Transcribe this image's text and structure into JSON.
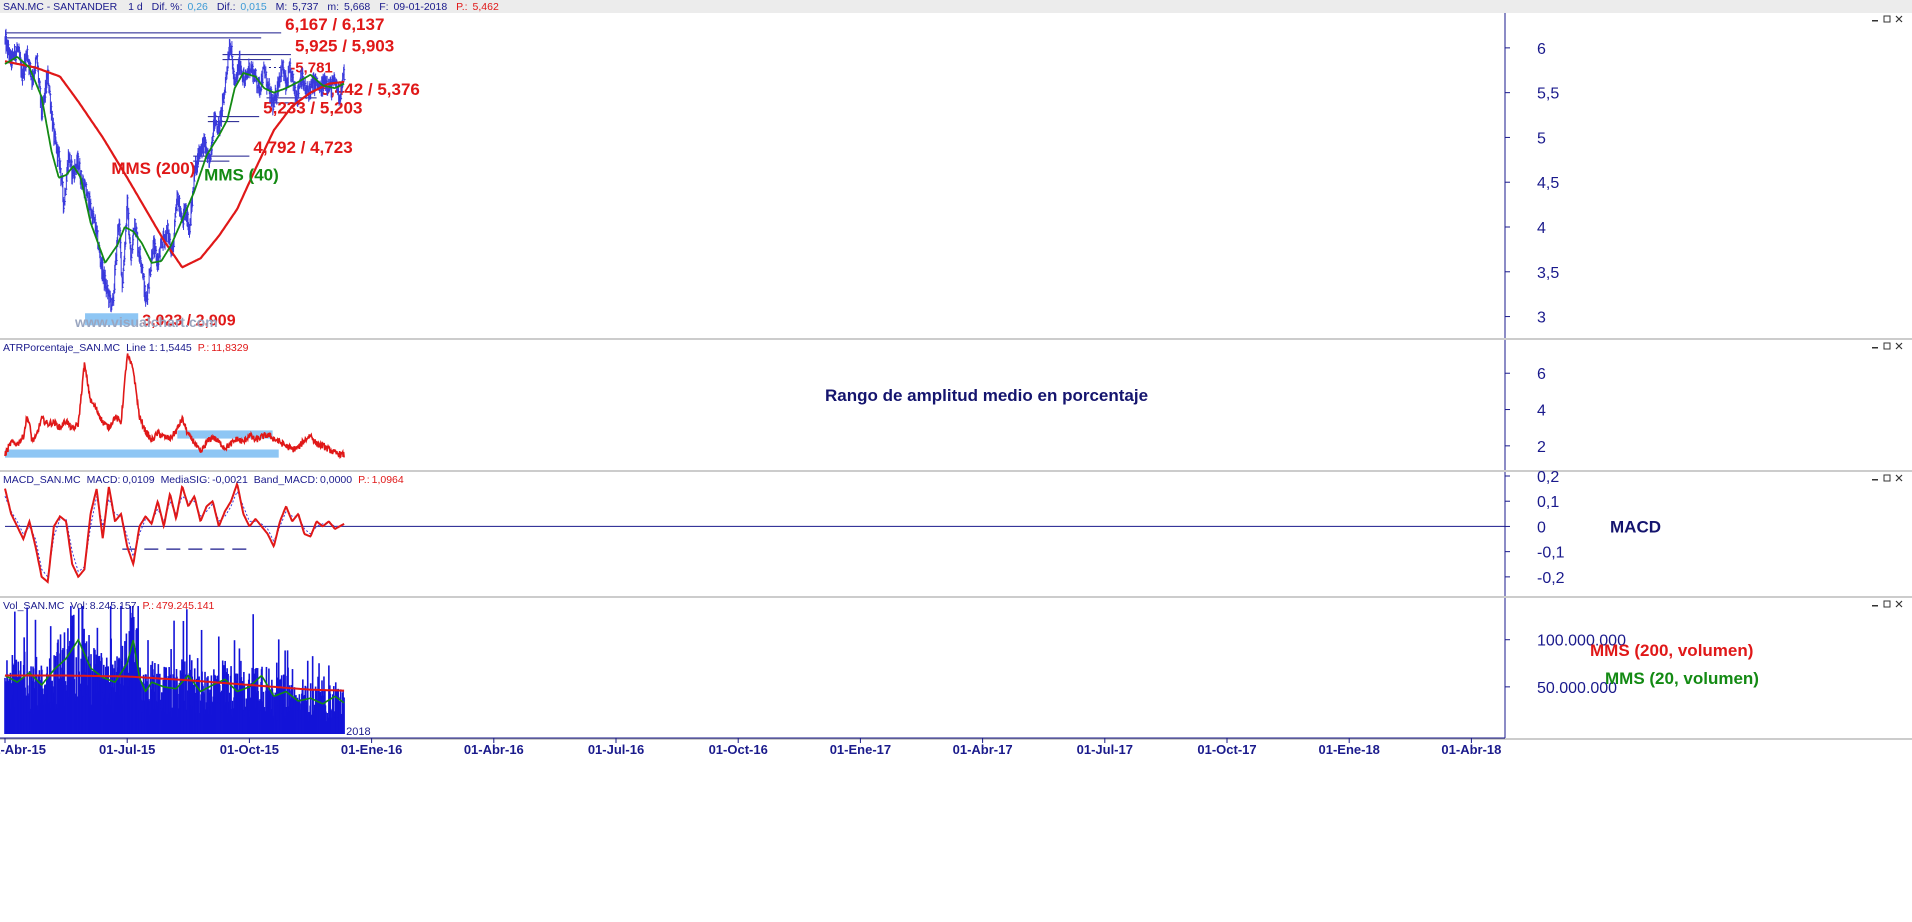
{
  "header": {
    "symbol": "SAN.MC - SANTANDER",
    "period": "1 d",
    "dif_pct_label": "Dif. %:",
    "dif_pct_value": "0,26",
    "dif_label": "Dif.:",
    "dif_value": "0,015",
    "max_label": "M:",
    "max_value": "5,737",
    "min_label": "m:",
    "min_value": "5,668",
    "date_label": "F:",
    "date_value": "09-01-2018",
    "price_label": "P.:",
    "price_value": "5,462"
  },
  "watermark": "www.visualchart.com",
  "colors": {
    "price": "#3a3adc",
    "mms200": "#e01818",
    "mms40": "#138a13",
    "level": "#1a1a8c",
    "band": "#8ec6f4",
    "annotation_red": "#e01818",
    "annotation_navy": "#14146e",
    "volume": "#1414d8"
  },
  "chart_data": [
    {
      "type": "line",
      "name": "price-panel",
      "x_axis": {
        "labels": [
          "01-Abr-15",
          "01-Jul-15",
          "01-Oct-15",
          "01-Ene-16",
          "01-Abr-16",
          "01-Jul-16",
          "01-Oct-16",
          "01-Ene-17",
          "01-Abr-17",
          "01-Jul-17",
          "01-Oct-17",
          "01-Ene-18",
          "01-Abr-18"
        ],
        "year_marker": "2018"
      },
      "ylim": [
        2.85,
        6.3
      ],
      "y_ticks": [
        3,
        3.5,
        4,
        4.5,
        5,
        5.5,
        6
      ],
      "y_tick_labels": [
        "3",
        "3,5",
        "4",
        "4,5",
        "5",
        "5,5",
        "6"
      ],
      "price": {
        "t": [
          0,
          0.05,
          0.1,
          0.14,
          0.18,
          0.22,
          0.26,
          0.3,
          0.35,
          0.4,
          0.45,
          0.48,
          0.52,
          0.55,
          0.6,
          0.62,
          0.66,
          0.7,
          0.74,
          0.79,
          0.83,
          0.88,
          0.93,
          0.96,
          1.0,
          1.03,
          1.06,
          1.09,
          1.12,
          1.15,
          1.18,
          1.21,
          1.25,
          1.29,
          1.33,
          1.37,
          1.41,
          1.45,
          1.48,
          1.51,
          1.55,
          1.59,
          1.63,
          1.67,
          1.71,
          1.75,
          1.79,
          1.84,
          1.88,
          1.92,
          1.96,
          2.0,
          2.04,
          2.08,
          2.12,
          2.16,
          2.2,
          2.24,
          2.27,
          2.3,
          2.33,
          2.36,
          2.39,
          2.42,
          2.46,
          2.5,
          2.54,
          2.58,
          2.62,
          2.66,
          2.7,
          2.74,
          2.775
        ],
        "values": [
          6.08,
          5.85,
          6.0,
          5.7,
          5.95,
          5.65,
          5.88,
          5.25,
          5.7,
          5.0,
          4.7,
          4.25,
          4.8,
          4.6,
          4.72,
          4.55,
          4.4,
          4.2,
          4.0,
          3.55,
          3.3,
          3.1,
          4.1,
          3.35,
          4.25,
          3.6,
          4.1,
          3.75,
          3.6,
          3.15,
          3.45,
          3.8,
          3.6,
          3.85,
          3.95,
          3.7,
          4.35,
          4.05,
          4.2,
          3.95,
          4.6,
          4.85,
          4.95,
          4.7,
          5.2,
          5.1,
          5.45,
          6.1,
          5.55,
          5.85,
          5.6,
          5.8,
          5.7,
          5.55,
          5.75,
          5.5,
          5.35,
          5.65,
          5.8,
          5.55,
          5.75,
          5.6,
          5.45,
          5.7,
          5.5,
          5.55,
          5.62,
          5.52,
          5.65,
          5.55,
          5.62,
          5.46,
          5.72
        ]
      },
      "mms200": {
        "t": [
          0,
          0.25,
          0.45,
          0.6,
          0.8,
          1.0,
          1.15,
          1.3,
          1.45,
          1.6,
          1.75,
          1.9,
          2.05,
          2.2,
          2.35,
          2.5,
          2.65,
          2.775
        ],
        "values": [
          5.85,
          5.78,
          5.68,
          5.4,
          5.0,
          4.55,
          4.2,
          3.85,
          3.55,
          3.65,
          3.9,
          4.2,
          4.65,
          5.08,
          5.35,
          5.5,
          5.6,
          5.62
        ]
      },
      "mms40": {
        "t": [
          0,
          0.1,
          0.2,
          0.3,
          0.38,
          0.44,
          0.5,
          0.56,
          0.62,
          0.7,
          0.82,
          0.92,
          0.98,
          1.05,
          1.12,
          1.2,
          1.28,
          1.36,
          1.45,
          1.55,
          1.65,
          1.75,
          1.82,
          1.88,
          1.95,
          2.05,
          2.12,
          2.2,
          2.3,
          2.4,
          2.5,
          2.6,
          2.7,
          2.775
        ],
        "values": [
          5.82,
          5.9,
          5.78,
          5.45,
          4.85,
          4.55,
          4.58,
          4.68,
          4.55,
          4.05,
          3.6,
          3.8,
          4.0,
          3.95,
          3.82,
          3.6,
          3.62,
          3.8,
          4.08,
          4.4,
          4.8,
          5.02,
          5.2,
          5.55,
          5.72,
          5.68,
          5.55,
          5.5,
          5.55,
          5.62,
          5.7,
          5.58,
          5.55,
          5.6
        ]
      },
      "levels": [
        {
          "label": "6,167 / 6,137",
          "y": 6.167,
          "t0": 0.0,
          "t1": 2.26
        },
        {
          "label": "5,925 / 5,903",
          "y": 5.925,
          "t0": 1.78,
          "t1": 2.34
        },
        {
          "label": "5,781",
          "y": 5.781,
          "t0": 2.16,
          "t1": 2.285,
          "dotted": true
        },
        {
          "label": "5,442 / 5,376",
          "y": 5.442,
          "t0": 2.14,
          "t1": 2.55
        },
        {
          "label": "5,233 / 5,203",
          "y": 5.233,
          "t0": 1.66,
          "t1": 2.08
        },
        {
          "label": "4,792 / 4,723",
          "y": 4.792,
          "t0": 1.54,
          "t1": 2.0
        },
        {
          "label": "3,023 / 2,909",
          "y": 2.97,
          "t0": 0.655,
          "t1": 1.09,
          "band": true
        }
      ],
      "annotations": {
        "mms200_label": "MMS (200)",
        "mms40_label": "MMS (40)"
      }
    },
    {
      "type": "line",
      "name": "atr-panel",
      "header": {
        "title": "ATRPorcentaje_SAN.MC",
        "line_label": "Line 1:",
        "line_value": "1,5445",
        "p_label": "P.:",
        "p_value": "11,8329"
      },
      "ylim": [
        1.0,
        7.5
      ],
      "y_ticks": [
        2,
        4,
        6
      ],
      "y_tick_labels": [
        "2",
        "4",
        "6"
      ],
      "t": [
        0,
        0.05,
        0.1,
        0.15,
        0.18,
        0.2,
        0.22,
        0.25,
        0.3,
        0.35,
        0.4,
        0.45,
        0.5,
        0.55,
        0.6,
        0.65,
        0.7,
        0.75,
        0.8,
        0.85,
        0.9,
        0.95,
        1.0,
        1.05,
        1.1,
        1.15,
        1.2,
        1.25,
        1.3,
        1.35,
        1.4,
        1.45,
        1.5,
        1.55,
        1.6,
        1.65,
        1.7,
        1.75,
        1.8,
        1.85,
        1.9,
        1.95,
        2.0,
        2.05,
        2.1,
        2.15,
        2.2,
        2.25,
        2.3,
        2.35,
        2.4,
        2.45,
        2.5,
        2.55,
        2.6,
        2.65,
        2.7,
        2.775
      ],
      "values": [
        1.5,
        2.2,
        2.1,
        2.5,
        3.6,
        3.2,
        2.3,
        2.4,
        3.5,
        3.2,
        3.3,
        3.0,
        3.4,
        2.9,
        3.2,
        6.5,
        4.5,
        4.0,
        3.3,
        3.0,
        3.6,
        3.3,
        7.0,
        6.2,
        3.6,
        2.8,
        2.3,
        2.7,
        2.5,
        2.4,
        2.8,
        3.5,
        2.6,
        2.2,
        1.6,
        2.2,
        2.5,
        2.2,
        1.9,
        2.1,
        2.4,
        2.2,
        2.6,
        2.3,
        2.5,
        2.6,
        2.4,
        2.2,
        2.0,
        1.8,
        1.9,
        2.3,
        2.6,
        2.1,
        2.0,
        1.8,
        1.6,
        1.5
      ],
      "bands": [
        {
          "y0": 1.35,
          "y1": 1.8,
          "t0": 0.0,
          "t1": 2.24
        },
        {
          "y0": 2.4,
          "y1": 2.85,
          "t0": 1.41,
          "t1": 2.19
        }
      ],
      "annotation": "Rango de amplitud medio en porcentaje"
    },
    {
      "type": "line",
      "name": "macd-panel",
      "header": {
        "title": "MACD_SAN.MC",
        "macd_label": "MACD:",
        "macd_value": "0,0109",
        "sig_label": "MediaSIG:",
        "sig_value": "-0,0021",
        "band_label": "Band_MACD:",
        "band_value": "0,0000",
        "p_label": "P.:",
        "p_value": "1,0964"
      },
      "ylim": [
        -0.26,
        0.2
      ],
      "y_ticks": [
        -0.2,
        -0.1,
        0,
        0.1,
        0.2
      ],
      "y_tick_labels": [
        "-0,2",
        "-0,1",
        "0",
        "0,1",
        "0,2"
      ],
      "t": [
        0,
        0.05,
        0.1,
        0.15,
        0.2,
        0.25,
        0.3,
        0.35,
        0.4,
        0.45,
        0.5,
        0.55,
        0.6,
        0.65,
        0.7,
        0.75,
        0.8,
        0.85,
        0.9,
        0.95,
        1.0,
        1.05,
        1.1,
        1.15,
        1.2,
        1.25,
        1.3,
        1.35,
        1.4,
        1.45,
        1.5,
        1.55,
        1.6,
        1.65,
        1.7,
        1.75,
        1.8,
        1.85,
        1.9,
        1.95,
        2.0,
        2.05,
        2.1,
        2.15,
        2.2,
        2.25,
        2.3,
        2.35,
        2.4,
        2.45,
        2.5,
        2.55,
        2.6,
        2.65,
        2.7,
        2.775
      ],
      "macd": [
        0.15,
        0.05,
        0.0,
        -0.05,
        0.02,
        -0.08,
        -0.2,
        -0.22,
        0.0,
        0.04,
        0.02,
        -0.15,
        -0.2,
        -0.17,
        0.05,
        0.15,
        -0.05,
        0.16,
        0.02,
        0.05,
        -0.08,
        -0.15,
        0.0,
        0.04,
        0.01,
        0.1,
        0.0,
        0.13,
        0.03,
        0.16,
        0.08,
        0.12,
        0.02,
        0.08,
        0.1,
        0.0,
        0.06,
        0.1,
        0.17,
        0.05,
        0.0,
        0.03,
        0.0,
        -0.03,
        -0.08,
        0.02,
        0.08,
        0.02,
        0.05,
        -0.03,
        -0.04,
        0.02,
        0.0,
        0.02,
        -0.01,
        0.01
      ],
      "signal": [
        0.12,
        0.06,
        0.02,
        -0.03,
        0.0,
        -0.05,
        -0.17,
        -0.2,
        -0.04,
        0.03,
        0.03,
        -0.1,
        -0.18,
        -0.16,
        0.0,
        0.12,
        0.0,
        0.11,
        0.05,
        0.04,
        -0.04,
        -0.12,
        -0.03,
        0.03,
        0.02,
        0.07,
        0.02,
        0.1,
        0.05,
        0.12,
        0.1,
        0.1,
        0.04,
        0.06,
        0.09,
        0.02,
        0.04,
        0.08,
        0.14,
        0.08,
        0.02,
        0.02,
        0.01,
        -0.01,
        -0.06,
        0.0,
        0.06,
        0.04,
        0.04,
        -0.01,
        -0.03,
        0.0,
        0.01,
        0.015,
        0.0,
        0.0
      ],
      "dashed_level": {
        "y": -0.09,
        "t0": 0.96,
        "t1": 2.04
      },
      "annotation": "MACD"
    },
    {
      "type": "bar",
      "name": "volume-panel",
      "header": {
        "title": "Vol_SAN.MC",
        "vol_label": "Vol:",
        "vol_value": "8.245.157",
        "p_label": "P.:",
        "p_value": "479.245.141"
      },
      "ylim": [
        0,
        140000000
      ],
      "y_ticks": [
        50000000,
        100000000
      ],
      "y_tick_labels": [
        "50.000.000",
        "100.000.000"
      ],
      "mms200": {
        "t": [
          0,
          0.5,
          1.0,
          1.5,
          2.0,
          2.5,
          2.775
        ],
        "values": [
          62000000,
          62000000,
          61000000,
          57000000,
          52000000,
          47000000,
          46000000
        ]
      },
      "mms20": {
        "t": [
          0,
          0.1,
          0.2,
          0.3,
          0.4,
          0.5,
          0.6,
          0.7,
          0.8,
          0.9,
          1.0,
          1.05,
          1.1,
          1.15,
          1.2,
          1.3,
          1.4,
          1.5,
          1.6,
          1.7,
          1.8,
          1.9,
          2.0,
          2.1,
          2.2,
          2.3,
          2.4,
          2.5,
          2.6,
          2.7,
          2.775
        ],
        "values": [
          62000000,
          55000000,
          65000000,
          52000000,
          68000000,
          80000000,
          100000000,
          70000000,
          60000000,
          55000000,
          75000000,
          100000000,
          60000000,
          45000000,
          55000000,
          50000000,
          48000000,
          62000000,
          45000000,
          52000000,
          58000000,
          45000000,
          50000000,
          62000000,
          40000000,
          45000000,
          35000000,
          38000000,
          32000000,
          40000000,
          33000000
        ]
      },
      "annotations": {
        "mms200_label": "MMS (200, volumen)",
        "mms20_label": "MMS (20, volumen)"
      }
    }
  ]
}
